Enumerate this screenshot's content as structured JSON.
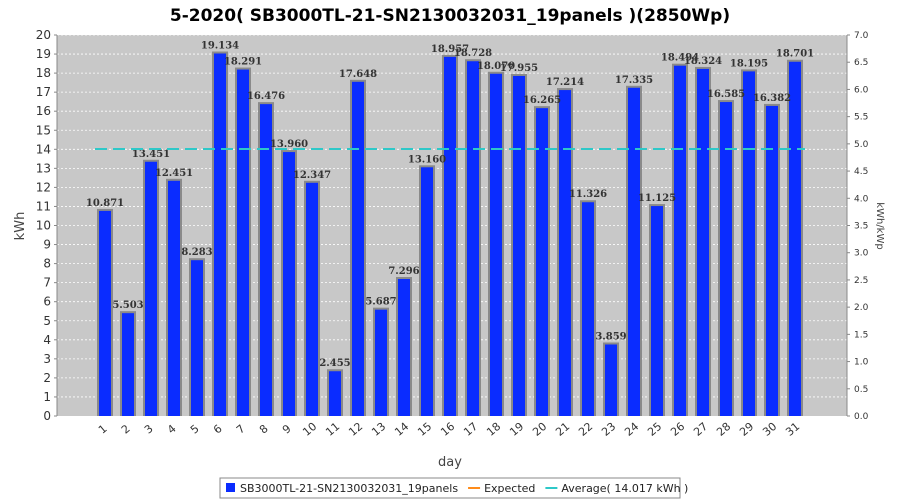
{
  "chart_data": {
    "type": "bar",
    "title": "5-2020( SB3000TL-21-SN2130032031_19panels )(2850Wp)",
    "xlabel": "day",
    "ylabel": "kWh",
    "y2label": "kWh/kWp",
    "categories": [
      "1",
      "2",
      "3",
      "4",
      "5",
      "6",
      "7",
      "8",
      "9",
      "10",
      "11",
      "12",
      "13",
      "14",
      "15",
      "16",
      "17",
      "18",
      "19",
      "20",
      "21",
      "22",
      "23",
      "24",
      "25",
      "26",
      "27",
      "28",
      "29",
      "30",
      "31"
    ],
    "series": [
      {
        "name": "SB3000TL-21-SN2130032031_19panels",
        "color": "#0a2cff",
        "values": [
          10.871,
          5.503,
          13.451,
          12.451,
          8.283,
          19.134,
          18.291,
          16.476,
          13.96,
          12.347,
          2.455,
          17.648,
          5.687,
          7.296,
          13.16,
          18.957,
          18.728,
          18.07,
          17.955,
          16.265,
          17.214,
          11.326,
          3.859,
          17.335,
          11.125,
          18.494,
          18.324,
          16.585,
          18.195,
          16.382,
          18.701
        ],
        "value_labels": [
          "10.871",
          "5.503",
          "13.451",
          "12.451",
          "8.283",
          "19.134",
          "18.291",
          "16.476",
          "13.960",
          "12.347",
          "2.455",
          "17.648",
          "5.687",
          "7.296",
          "13.160",
          "18.957",
          "18.728",
          "18.070",
          "17.955",
          "16.265",
          "17.214",
          "11.326",
          "3.859",
          "17.335",
          "11.125",
          "18.494",
          "18.324",
          "16.585",
          "18.195",
          "16.382",
          "18.701"
        ]
      }
    ],
    "average": 14.017,
    "ylim": [
      0,
      20
    ],
    "y_ticks": [
      "0",
      "1",
      "2",
      "3",
      "4",
      "5",
      "6",
      "7",
      "8",
      "9",
      "10",
      "11",
      "12",
      "13",
      "14",
      "15",
      "16",
      "17",
      "18",
      "19",
      "20"
    ],
    "y2lim": [
      0,
      7.0
    ],
    "y2_ticks": [
      "0.0",
      "0.5",
      "1.0",
      "1.5",
      "2.0",
      "2.5",
      "3.0",
      "3.5",
      "4.0",
      "4.5",
      "5.0",
      "5.5",
      "6.0",
      "6.5",
      "7.0"
    ],
    "grid": true,
    "legend_position": "bottom",
    "legend": [
      {
        "label": "SB3000TL-21-SN2130032031_19panels",
        "kind": "box",
        "color": "#0a2cff"
      },
      {
        "label": "Expected",
        "kind": "line",
        "color": "#ff8c1a"
      },
      {
        "label": "Average( 14.017 kWh )",
        "kind": "line",
        "color": "#2ec8c8"
      }
    ],
    "colors": {
      "plot_background": "#c8c8c8",
      "grid": "#ffffff",
      "bar": "#0a2cff",
      "bar_edge": "#8a8a8a",
      "average_line": "#2ec8c8"
    }
  }
}
